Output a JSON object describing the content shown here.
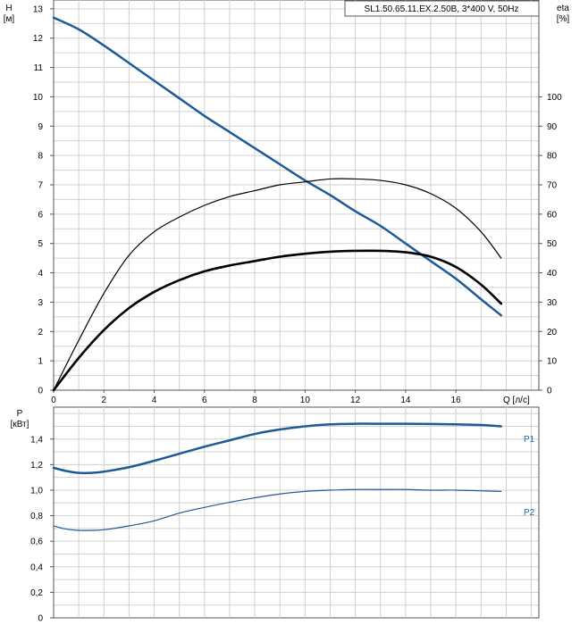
{
  "chart_data": [
    {
      "type": "line",
      "title": "SL1.50.65.11.EX.2.50B, 3*400 V, 50Hz",
      "xlabel": "Q [л/с]",
      "ylabel": "H\n[м]",
      "ylabel_right": "eta\n[%]",
      "xlim": [
        0,
        19.3
      ],
      "ylim": [
        0,
        13.3
      ],
      "ylim_right": [
        0,
        100
      ],
      "x_ticks": [
        "0",
        "2",
        "4",
        "6",
        "8",
        "10",
        "12",
        "14",
        "16"
      ],
      "x_tick_values": [
        0,
        2,
        4,
        6,
        8,
        10,
        12,
        14,
        16
      ],
      "y_ticks": [
        "0",
        "1",
        "2",
        "3",
        "4",
        "5",
        "6",
        "7",
        "8",
        "9",
        "10",
        "11",
        "12",
        "13"
      ],
      "y_tick_values": [
        0,
        1,
        2,
        3,
        4,
        5,
        6,
        7,
        8,
        9,
        10,
        11,
        12,
        13
      ],
      "y_right_ticks": [
        "0",
        "10",
        "20",
        "30",
        "40",
        "50",
        "60",
        "70",
        "80",
        "90",
        "100"
      ],
      "y_right_tick_values": [
        0,
        10,
        20,
        30,
        40,
        50,
        60,
        70,
        80,
        90,
        100
      ],
      "grid": true,
      "series": [
        {
          "axis": "left",
          "color": "#1f5a96",
          "width": 2.5,
          "x": [
            0,
            1,
            2,
            3,
            4,
            5,
            6,
            7,
            8,
            9,
            10,
            11,
            12,
            13,
            14,
            15,
            16,
            17,
            17.8
          ],
          "y": [
            12.7,
            12.3,
            11.75,
            11.15,
            10.55,
            9.95,
            9.35,
            8.8,
            8.25,
            7.7,
            7.15,
            6.65,
            6.1,
            5.6,
            5.0,
            4.4,
            3.8,
            3.1,
            2.55
          ]
        },
        {
          "axis": "right",
          "color": "#000000",
          "width": 1.2,
          "x": [
            0,
            1,
            2,
            3,
            4,
            5,
            6,
            7,
            8,
            9,
            10,
            11,
            12,
            13,
            14,
            15,
            16,
            17,
            17.8
          ],
          "y": [
            0,
            17,
            33,
            46,
            54,
            59,
            63,
            66,
            68,
            70,
            71,
            72,
            72,
            71.5,
            70,
            67,
            62,
            54,
            45
          ]
        },
        {
          "axis": "left",
          "color": "#000000",
          "width": 2.6,
          "x": [
            0,
            1,
            2,
            3,
            4,
            5,
            6,
            7,
            8,
            9,
            10,
            11,
            12,
            13,
            14,
            15,
            16,
            17,
            17.8
          ],
          "y": [
            0,
            1.1,
            2.05,
            2.8,
            3.35,
            3.75,
            4.05,
            4.25,
            4.4,
            4.55,
            4.65,
            4.72,
            4.75,
            4.75,
            4.7,
            4.55,
            4.2,
            3.6,
            2.95
          ]
        }
      ]
    },
    {
      "type": "line",
      "ylabel": "P\n[кВт]",
      "xlim": [
        0,
        19.3
      ],
      "ylim": [
        0,
        1.65
      ],
      "y_ticks": [
        "0",
        "0,2",
        "0,4",
        "0,6",
        "0,8",
        "1,0",
        "1,2",
        "1,4"
      ],
      "y_tick_values": [
        0,
        0.2,
        0.4,
        0.6,
        0.8,
        1.0,
        1.2,
        1.4
      ],
      "grid": true,
      "series": [
        {
          "name": "P1",
          "color": "#1f5a96",
          "width": 2.5,
          "x": [
            0,
            0.5,
            1,
            1.5,
            2,
            3,
            4,
            5,
            6,
            7,
            8,
            9,
            10,
            11,
            12,
            13,
            14,
            15,
            16,
            17,
            17.8
          ],
          "y": [
            1.175,
            1.15,
            1.135,
            1.135,
            1.145,
            1.18,
            1.23,
            1.285,
            1.34,
            1.39,
            1.44,
            1.475,
            1.5,
            1.515,
            1.52,
            1.52,
            1.52,
            1.518,
            1.515,
            1.51,
            1.5
          ]
        },
        {
          "name": "P2",
          "color": "#1f5a96",
          "width": 1.2,
          "x": [
            0,
            0.5,
            1,
            1.5,
            2,
            3,
            4,
            5,
            6,
            7,
            8,
            9,
            10,
            11,
            12,
            13,
            14,
            15,
            16,
            17,
            17.8
          ],
          "y": [
            0.72,
            0.695,
            0.685,
            0.685,
            0.69,
            0.72,
            0.76,
            0.82,
            0.865,
            0.905,
            0.94,
            0.97,
            0.99,
            1.0,
            1.005,
            1.005,
            1.005,
            1.0,
            1.0,
            0.995,
            0.99
          ]
        }
      ]
    }
  ]
}
